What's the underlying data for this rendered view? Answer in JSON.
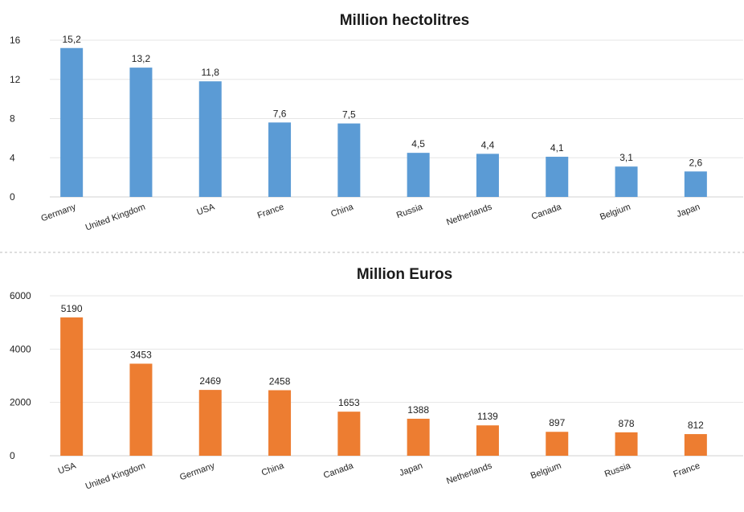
{
  "chart_data": [
    {
      "type": "bar",
      "title": "Million hectolitres",
      "categories": [
        "Germany",
        "United Kingdom",
        "USA",
        "France",
        "China",
        "Russia",
        "Netherlands",
        "Canada",
        "Belgium",
        "Japan"
      ],
      "values": [
        15.2,
        13.2,
        11.8,
        7.6,
        7.5,
        4.5,
        4.4,
        4.1,
        3.1,
        2.6
      ],
      "value_labels": [
        "15,2",
        "13,2",
        "11,8",
        "7,6",
        "7,5",
        "4,5",
        "4,4",
        "4,1",
        "3,1",
        "2,6"
      ],
      "yticks": [
        "0",
        "4",
        "8",
        "12",
        "16"
      ],
      "ylim": [
        0,
        16
      ],
      "grid": true,
      "color": "#5b9bd5"
    },
    {
      "type": "bar",
      "title": "Million Euros",
      "categories": [
        "USA",
        "United Kingdom",
        "Germany",
        "China",
        "Canada",
        "Japan",
        "Netherlands",
        "Belgium",
        "Russia",
        "France"
      ],
      "values": [
        5190,
        3453,
        2469,
        2458,
        1653,
        1388,
        1139,
        897,
        878,
        812
      ],
      "value_labels": [
        "5190",
        "3453",
        "2469",
        "2458",
        "1653",
        "1388",
        "1139",
        "897",
        "878",
        "812"
      ],
      "yticks": [
        "0",
        "2000",
        "4000",
        "6000"
      ],
      "ylim": [
        0,
        6000
      ],
      "grid": true,
      "color": "#ed7d31"
    }
  ]
}
